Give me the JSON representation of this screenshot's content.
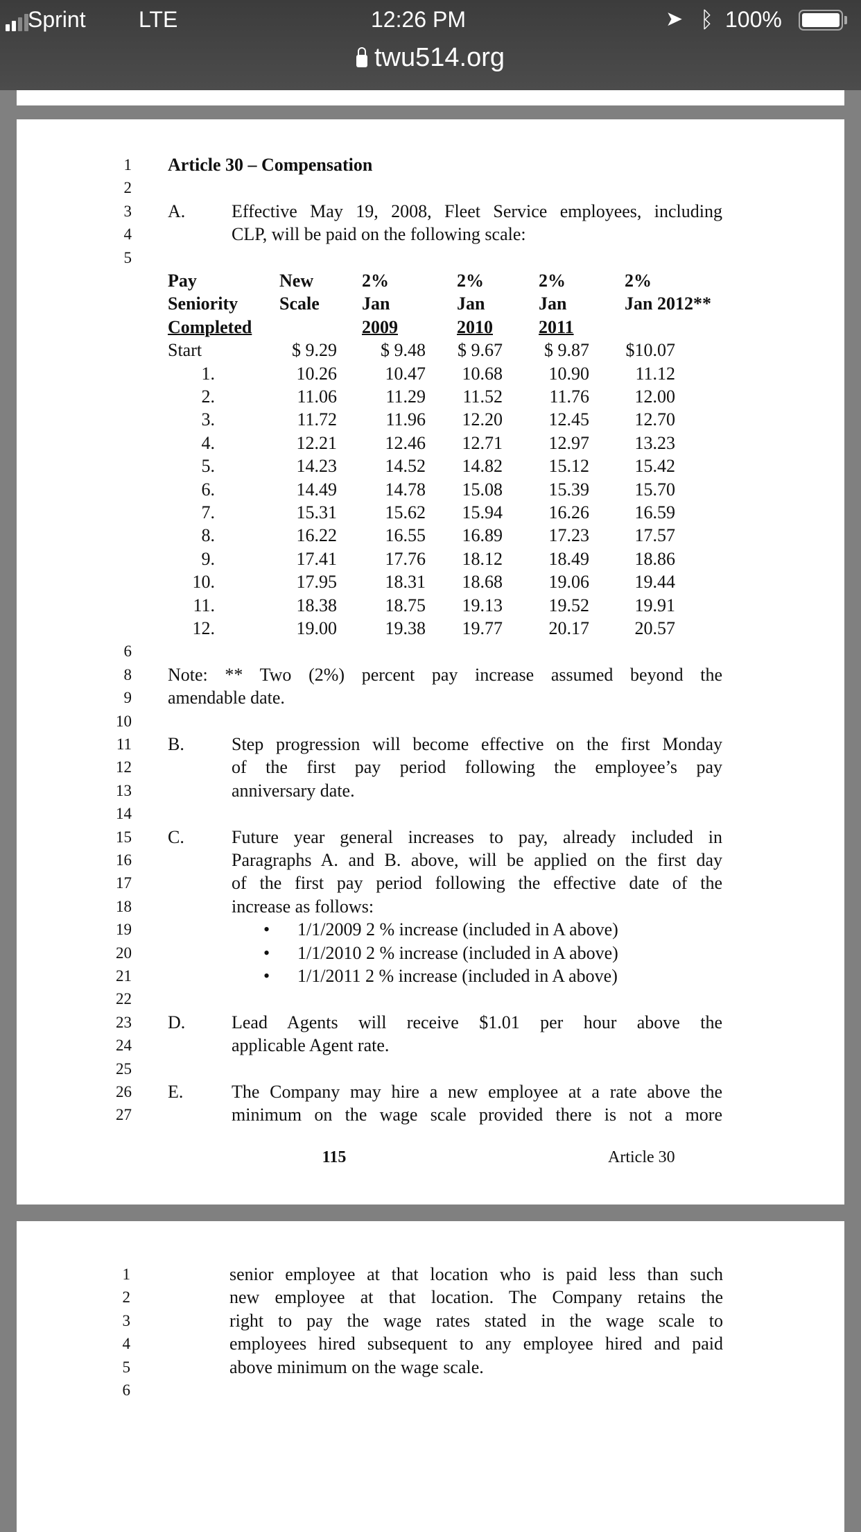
{
  "status_bar": {
    "carrier": "Sprint",
    "network": "LTE",
    "time": "12:26 PM",
    "battery": "100%",
    "signal_bars": 2,
    "icons": [
      "location-arrow-icon",
      "bluetooth-icon",
      "battery-icon"
    ]
  },
  "browser": {
    "url": "twu514.org",
    "icon": "lock-icon"
  },
  "page1": {
    "heading": "Article 30 – Compensation",
    "lines_before_table": [
      {
        "num": "1",
        "kind": "heading"
      },
      {
        "num": "2"
      },
      {
        "num": "3",
        "label": "A.",
        "text": "Effective May 19, 2008, Fleet Service employees, including",
        "full": true
      },
      {
        "num": "4",
        "text": "CLP, will be paid on the following scale:"
      },
      {
        "num": "5"
      }
    ],
    "table": {
      "header": [
        [
          "Pay",
          "Seniority",
          "Completed"
        ],
        [
          "New",
          "Scale",
          ""
        ],
        [
          "2%",
          "Jan",
          "2009"
        ],
        [
          "2%",
          "Jan",
          "2010"
        ],
        [
          "2%",
          "Jan",
          "2011"
        ],
        [
          "2%",
          "Jan 2012**",
          ""
        ]
      ],
      "rows": [
        [
          "Start",
          "$ 9.29",
          "$ 9.48",
          "$ 9.67",
          "$ 9.87",
          "$10.07"
        ],
        [
          "1.",
          "10.26",
          "10.47",
          "10.68",
          "10.90",
          "11.12"
        ],
        [
          "2.",
          "11.06",
          "11.29",
          "11.52",
          "11.76",
          "12.00"
        ],
        [
          "3.",
          "11.72",
          "11.96",
          "12.20",
          "12.45",
          "12.70"
        ],
        [
          "4.",
          "12.21",
          "12.46",
          "12.71",
          "12.97",
          "13.23"
        ],
        [
          "5.",
          "14.23",
          "14.52",
          "14.82",
          "15.12",
          "15.42"
        ],
        [
          "6.",
          "14.49",
          "14.78",
          "15.08",
          "15.39",
          "15.70"
        ],
        [
          "7.",
          "15.31",
          "15.62",
          "15.94",
          "16.26",
          "16.59"
        ],
        [
          "8.",
          "16.22",
          "16.55",
          "16.89",
          "17.23",
          "17.57"
        ],
        [
          "9.",
          "17.41",
          "17.76",
          "18.12",
          "18.49",
          "18.86"
        ],
        [
          "10.",
          "17.95",
          "18.31",
          "18.68",
          "19.06",
          "19.44"
        ],
        [
          "11.",
          "18.38",
          "18.75",
          "19.13",
          "19.52",
          "19.91"
        ],
        [
          "12.",
          "19.00",
          "19.38",
          "19.77",
          "20.17",
          "20.57"
        ]
      ]
    },
    "lines_after_table": [
      {
        "num": "6"
      },
      {
        "num": "8",
        "note": "Note: ** Two (2%) percent pay increase assumed beyond the",
        "full": true
      },
      {
        "num": "9",
        "note": "amendable date."
      },
      {
        "num": "10"
      },
      {
        "num": "11",
        "label": "B.",
        "text": "Step progression will become effective on the first Monday",
        "full": true
      },
      {
        "num": "12",
        "text": "of the first pay period following the employee’s pay",
        "full": true
      },
      {
        "num": "13",
        "text": "anniversary date."
      },
      {
        "num": "14"
      },
      {
        "num": "15",
        "label": "C.",
        "text": "Future year general increases to pay, already included in",
        "full": true
      },
      {
        "num": "16",
        "text": "Paragraphs A. and B. above, will be applied on the first day",
        "full": true
      },
      {
        "num": "17",
        "text": "of the first pay period following the effective date of the",
        "full": true
      },
      {
        "num": "18",
        "text": "increase as follows:"
      },
      {
        "num": "19",
        "bullet": "1/1/2009  2 % increase (included in A above)"
      },
      {
        "num": "20",
        "bullet": "1/1/2010  2 % increase (included in A above)"
      },
      {
        "num": "21",
        "bullet": "1/1/2011  2 % increase (included in A above)"
      },
      {
        "num": "22"
      },
      {
        "num": "23",
        "label": "D.",
        "text": "Lead Agents will receive $1.01 per hour above the",
        "full": true
      },
      {
        "num": "24",
        "text": "applicable Agent rate."
      },
      {
        "num": "25"
      },
      {
        "num": "26",
        "label": "E.",
        "text": "The Company may hire a new employee at a rate above the",
        "full": true
      },
      {
        "num": "27",
        "text": "minimum on the wage scale provided there is not a more",
        "full": true
      }
    ],
    "footer": {
      "page_number": "115",
      "article": "Article 30"
    }
  },
  "page2": {
    "lines": [
      {
        "num": "1",
        "text": "senior employee at that location who is paid less than such",
        "full": true
      },
      {
        "num": "2",
        "text": "new employee at that location. The Company retains the",
        "full": true
      },
      {
        "num": "3",
        "text": "right to pay the wage rates stated in the wage scale to",
        "full": true
      },
      {
        "num": "4",
        "text": "employees hired subsequent to any employee hired and paid",
        "full": true
      },
      {
        "num": "5",
        "text": "above minimum on the wage scale."
      },
      {
        "num": "6"
      }
    ]
  }
}
